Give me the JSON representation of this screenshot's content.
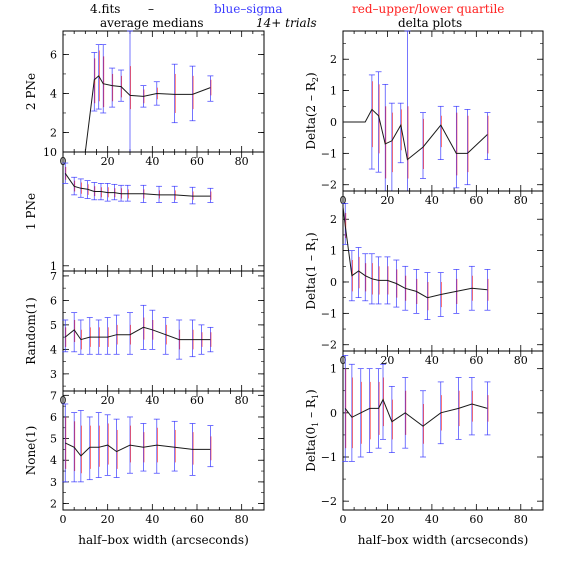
{
  "header": {
    "file": "4.fits",
    "dash": "–",
    "blue_label": "blue–sigma",
    "red_label": "red–upper/lower quartile",
    "left_title": "average medians",
    "trials": "14+ trials",
    "right_title": "delta plots"
  },
  "colors": {
    "blue": "#3a3aff",
    "red": "#ff2020",
    "line": "#1a1a1a",
    "axis": "#000000"
  },
  "chart_data": [
    {
      "type": "line",
      "ylabel": "2 PNe",
      "xlim": [
        0,
        90
      ],
      "ylim": [
        1,
        7.2
      ],
      "x_ticks": [
        0,
        20,
        40,
        60,
        80
      ],
      "y_ticks": [
        2,
        4,
        6
      ],
      "show_x_ticklabels": true,
      "x": [
        0,
        10,
        14,
        16,
        18,
        22,
        26,
        30,
        36,
        42,
        50,
        58,
        66
      ],
      "y": [
        1,
        1,
        4.7,
        4.9,
        4.5,
        4.4,
        4.35,
        3.9,
        3.85,
        4.0,
        3.95,
        3.95,
        4.3
      ],
      "err_x": [
        14,
        16,
        18,
        22,
        26,
        30,
        36,
        42,
        50,
        58,
        66
      ],
      "err_y": [
        4.7,
        4.9,
        4.5,
        4.4,
        4.35,
        3.9,
        3.85,
        4.0,
        3.95,
        3.95,
        4.3
      ],
      "sigma_lo": [
        3.1,
        3.2,
        3.0,
        3.3,
        3.6,
        1.0,
        3.3,
        3.4,
        2.5,
        2.6,
        3.6
      ],
      "sigma_hi": [
        6.1,
        6.5,
        6.5,
        5.3,
        5.2,
        7.2,
        4.4,
        4.6,
        5.5,
        5.4,
        4.9
      ],
      "q_lo": [
        3.5,
        3.6,
        3.3,
        3.6,
        3.8,
        3.2,
        3.5,
        3.7,
        3.0,
        3.2,
        3.9
      ],
      "q_hi": [
        5.8,
        6.2,
        5.9,
        5.0,
        4.9,
        5.4,
        4.2,
        4.3,
        5.0,
        4.9,
        4.7
      ]
    },
    {
      "type": "line",
      "ylabel": "1 PNe",
      "xlim": [
        0,
        90
      ],
      "ylim": [
        0.9,
        10
      ],
      "x_ticks": [
        0,
        20,
        40,
        60,
        80
      ],
      "y_ticks": [
        1,
        10
      ],
      "show_x_ticklabels": false,
      "log_y": true,
      "x": [
        1,
        5,
        8,
        11,
        14,
        17,
        20,
        23,
        26,
        29,
        36,
        43,
        50,
        58,
        66
      ],
      "y": [
        6.5,
        5.0,
        4.8,
        4.7,
        4.5,
        4.5,
        4.4,
        4.4,
        4.3,
        4.3,
        4.3,
        4.2,
        4.2,
        4.1,
        4.1
      ],
      "err_x": [
        1,
        5,
        8,
        11,
        14,
        17,
        20,
        23,
        26,
        29,
        36,
        43,
        50,
        58,
        66
      ],
      "err_y": [
        6.5,
        5.0,
        4.8,
        4.7,
        4.5,
        4.5,
        4.4,
        4.4,
        4.3,
        4.3,
        4.3,
        4.2,
        4.2,
        4.1,
        4.1
      ],
      "sigma_lo": [
        5.3,
        4.2,
        4.0,
        3.9,
        3.8,
        3.8,
        3.7,
        3.8,
        3.7,
        3.7,
        3.6,
        3.6,
        3.6,
        3.5,
        3.6
      ],
      "sigma_hi": [
        8.0,
        6.0,
        5.8,
        5.6,
        5.4,
        5.3,
        5.3,
        5.2,
        5.1,
        5.1,
        5.1,
        5.0,
        5.0,
        4.9,
        4.8
      ],
      "q_lo": [
        5.7,
        4.5,
        4.3,
        4.2,
        4.1,
        4.0,
        4.0,
        4.0,
        3.9,
        3.9,
        3.9,
        3.9,
        3.8,
        3.8,
        3.8
      ],
      "q_hi": [
        7.4,
        5.6,
        5.4,
        5.2,
        5.0,
        4.9,
        4.9,
        4.8,
        4.8,
        4.7,
        4.7,
        4.6,
        4.6,
        4.5,
        4.5
      ]
    },
    {
      "type": "line",
      "ylabel": "Random(1)",
      "xlim": [
        0,
        90
      ],
      "ylim": [
        2.3,
        7.2
      ],
      "x_ticks": [
        0,
        20,
        40,
        60,
        80
      ],
      "y_ticks": [
        3,
        4,
        5,
        6,
        7
      ],
      "show_x_ticklabels": true,
      "x": [
        1,
        5,
        8,
        12,
        16,
        20,
        24,
        30,
        36,
        40,
        46,
        52,
        58,
        62,
        66
      ],
      "y": [
        4.5,
        4.8,
        4.4,
        4.5,
        4.5,
        4.5,
        4.6,
        4.6,
        4.9,
        4.8,
        4.6,
        4.4,
        4.4,
        4.4,
        4.4
      ],
      "err_x": [
        1,
        5,
        8,
        12,
        16,
        20,
        24,
        30,
        36,
        40,
        46,
        52,
        58,
        62,
        66
      ],
      "err_y": [
        4.5,
        4.8,
        4.4,
        4.5,
        4.5,
        4.5,
        4.6,
        4.6,
        4.9,
        4.8,
        4.6,
        4.4,
        4.4,
        4.4,
        4.4
      ],
      "sigma_lo": [
        3.9,
        3.9,
        3.8,
        3.8,
        3.8,
        3.8,
        3.8,
        3.8,
        4.0,
        4.0,
        3.8,
        3.6,
        3.7,
        3.8,
        3.9
      ],
      "sigma_hi": [
        5.2,
        5.5,
        5.2,
        5.3,
        5.2,
        5.3,
        5.4,
        5.5,
        5.8,
        5.6,
        5.3,
        5.2,
        5.2,
        5.0,
        4.9
      ],
      "q_lo": [
        4.1,
        4.3,
        4.0,
        4.1,
        4.1,
        4.1,
        4.2,
        4.2,
        4.4,
        4.4,
        4.2,
        4.0,
        4.0,
        4.1,
        4.1
      ],
      "q_hi": [
        4.9,
        5.2,
        4.8,
        4.9,
        4.9,
        4.9,
        5.0,
        5.0,
        5.3,
        5.2,
        5.0,
        4.8,
        4.8,
        4.7,
        4.7
      ]
    },
    {
      "type": "line",
      "ylabel": "None(1)",
      "xlim": [
        0,
        90
      ],
      "ylim": [
        1.7,
        7.2
      ],
      "x_ticks": [
        0,
        20,
        40,
        60,
        80
      ],
      "y_ticks": [
        2,
        3,
        4,
        5,
        6,
        7
      ],
      "show_x_ticklabels": true,
      "xlabel": "half–box width (arcseconds)",
      "x": [
        1,
        5,
        8,
        12,
        16,
        20,
        24,
        30,
        36,
        42,
        50,
        58,
        66
      ],
      "y": [
        4.8,
        4.6,
        4.2,
        4.6,
        4.6,
        4.7,
        4.4,
        4.7,
        4.6,
        4.7,
        4.6,
        4.5,
        4.5
      ],
      "err_x": [
        1,
        5,
        8,
        12,
        16,
        20,
        24,
        30,
        36,
        42,
        50,
        58,
        66
      ],
      "err_y": [
        4.8,
        4.6,
        4.2,
        4.6,
        4.6,
        4.7,
        4.4,
        4.7,
        4.6,
        4.7,
        4.6,
        4.5,
        4.5
      ],
      "sigma_lo": [
        3.0,
        3.0,
        3.0,
        3.1,
        3.2,
        3.3,
        3.2,
        3.4,
        3.5,
        3.4,
        3.5,
        3.3,
        3.7
      ],
      "sigma_hi": [
        6.6,
        6.2,
        6.3,
        6.0,
        6.2,
        6.1,
        5.9,
        6.0,
        5.7,
        5.9,
        5.8,
        5.7,
        5.6
      ],
      "q_lo": [
        3.6,
        3.5,
        3.4,
        3.6,
        3.7,
        3.8,
        3.6,
        3.9,
        3.9,
        3.9,
        3.9,
        3.8,
        4.0
      ],
      "q_hi": [
        6.0,
        5.8,
        5.6,
        5.6,
        5.6,
        5.7,
        5.4,
        5.6,
        5.3,
        5.5,
        5.4,
        5.3,
        5.1
      ]
    },
    {
      "type": "line",
      "ylabel": "Delta(2 – R_2)",
      "ylabel_main": "Delta(2 – R",
      "ylabel_sub": "2",
      "ylabel_end": ")",
      "xlim": [
        0,
        90
      ],
      "ylim": [
        -2.2,
        2.9
      ],
      "x_ticks": [
        0,
        20,
        40,
        60,
        80
      ],
      "y_ticks": [
        -2,
        -1,
        0,
        1,
        2
      ],
      "show_x_ticklabels": true,
      "x": [
        0,
        5,
        10,
        13,
        16,
        19,
        22,
        26,
        29,
        36,
        44,
        51,
        56,
        65
      ],
      "y": [
        0,
        0,
        0,
        0.4,
        0.2,
        -0.7,
        -0.6,
        -0.1,
        -1.2,
        -0.8,
        -0.1,
        -1.0,
        -1.0,
        -0.4
      ],
      "err_x": [
        13,
        16,
        19,
        22,
        26,
        29,
        36,
        44,
        51,
        56,
        65
      ],
      "err_y": [
        0.4,
        0.2,
        -0.7,
        -0.6,
        -0.1,
        -1.2,
        -0.8,
        -0.1,
        -1.0,
        -1.0,
        -0.4
      ],
      "sigma_lo": [
        -1.5,
        -1.6,
        -2.2,
        -2.2,
        -1.3,
        -2.2,
        -1.8,
        -1.2,
        -2.1,
        -2.0,
        -1.2
      ],
      "sigma_hi": [
        1.5,
        1.6,
        1.2,
        0.6,
        0.6,
        2.9,
        0.3,
        0.5,
        0.5,
        0.4,
        0.3
      ],
      "q_lo": [
        -0.8,
        -1.0,
        -1.8,
        -1.6,
        -0.9,
        -1.8,
        -1.5,
        -0.8,
        -1.7,
        -1.6,
        -1.0
      ],
      "q_hi": [
        1.3,
        1.2,
        0.5,
        0.3,
        0.4,
        0.5,
        0.1,
        0.2,
        0.3,
        0.2,
        0.2
      ]
    },
    {
      "type": "line",
      "ylabel": "Delta(1 – R_1)",
      "ylabel_main": "Delta(1 – R",
      "ylabel_sub": "1",
      "ylabel_end": ")",
      "xlim": [
        0,
        90
      ],
      "ylim": [
        -2.2,
        2.9
      ],
      "x_ticks": [
        0,
        20,
        40,
        60,
        80
      ],
      "y_ticks": [
        -2,
        -1,
        0,
        1,
        2
      ],
      "show_x_ticklabels": true,
      "x": [
        0,
        1,
        4,
        7,
        10,
        13,
        16,
        20,
        24,
        28,
        33,
        38,
        44,
        51,
        58,
        65
      ],
      "y": [
        2.4,
        1.8,
        0.2,
        0.35,
        0.2,
        0.1,
        0.05,
        0.05,
        -0.05,
        -0.2,
        -0.3,
        -0.5,
        -0.4,
        -0.3,
        -0.2,
        -0.25
      ],
      "err_x": [
        1,
        4,
        7,
        10,
        13,
        16,
        20,
        24,
        28,
        33,
        38,
        44,
        51,
        58,
        65
      ],
      "err_y": [
        1.8,
        0.2,
        0.35,
        0.2,
        0.1,
        0.05,
        0.05,
        -0.05,
        -0.2,
        -0.3,
        -0.5,
        -0.4,
        -0.3,
        -0.2,
        -0.25
      ],
      "sigma_lo": [
        1.2,
        -0.6,
        -0.5,
        -0.6,
        -0.7,
        -0.7,
        -0.7,
        -0.8,
        -0.9,
        -1.0,
        -1.2,
        -1.1,
        -1.0,
        -0.9,
        -0.9
      ],
      "sigma_hi": [
        2.5,
        1.0,
        1.1,
        0.9,
        0.9,
        0.8,
        0.8,
        0.7,
        0.5,
        0.4,
        0.3,
        0.3,
        0.4,
        0.5,
        0.4
      ],
      "q_lo": [
        1.4,
        -0.3,
        -0.2,
        -0.3,
        -0.4,
        -0.4,
        -0.4,
        -0.5,
        -0.6,
        -0.7,
        -0.9,
        -0.8,
        -0.7,
        -0.6,
        -0.6
      ],
      "q_hi": [
        2.2,
        0.7,
        0.8,
        0.6,
        0.6,
        0.5,
        0.5,
        0.4,
        0.2,
        0.1,
        0.0,
        0.0,
        0.1,
        0.2,
        0.1
      ]
    },
    {
      "type": "line",
      "ylabel": "Delta(0_1 – R_1)",
      "ylabel_main": "Delta(0",
      "ylabel_mid": " – R",
      "ylabel_sub": "1",
      "ylabel_end": ")",
      "xlim": [
        0,
        90
      ],
      "ylim": [
        -2.2,
        1.4
      ],
      "x_ticks": [
        0,
        20,
        40,
        60,
        80
      ],
      "y_ticks": [
        -2,
        -1,
        0,
        1
      ],
      "show_x_ticklabels": true,
      "xlabel": "half–box width (arcseconds)",
      "x": [
        1,
        4,
        8,
        12,
        16,
        18,
        22,
        28,
        36,
        44,
        52,
        58,
        65
      ],
      "y": [
        0.1,
        -0.1,
        0.0,
        0.1,
        0.1,
        0.3,
        -0.2,
        0.0,
        -0.3,
        0.0,
        0.1,
        0.2,
        0.1
      ],
      "err_x": [
        1,
        4,
        8,
        12,
        16,
        18,
        22,
        28,
        36,
        44,
        52,
        58,
        65
      ],
      "err_y": [
        0.1,
        -0.1,
        0.0,
        0.1,
        0.1,
        0.3,
        -0.2,
        0.0,
        -0.3,
        0.0,
        0.1,
        0.2,
        0.1
      ],
      "sigma_lo": [
        -1.1,
        -1.1,
        -1.0,
        -0.9,
        -0.8,
        -0.6,
        -0.9,
        -0.8,
        -1.0,
        -0.7,
        -0.6,
        -0.5,
        -0.5
      ],
      "sigma_hi": [
        1.3,
        1.1,
        1.0,
        1.0,
        1.0,
        1.1,
        0.6,
        0.8,
        0.5,
        0.7,
        0.8,
        0.8,
        0.7
      ],
      "q_lo": [
        -0.8,
        -0.8,
        -0.7,
        -0.6,
        -0.5,
        -0.3,
        -0.6,
        -0.5,
        -0.7,
        -0.4,
        -0.3,
        -0.2,
        -0.2
      ],
      "q_hi": [
        1.0,
        0.8,
        0.7,
        0.7,
        0.7,
        0.8,
        0.3,
        0.5,
        0.2,
        0.4,
        0.5,
        0.5,
        0.4
      ]
    }
  ]
}
